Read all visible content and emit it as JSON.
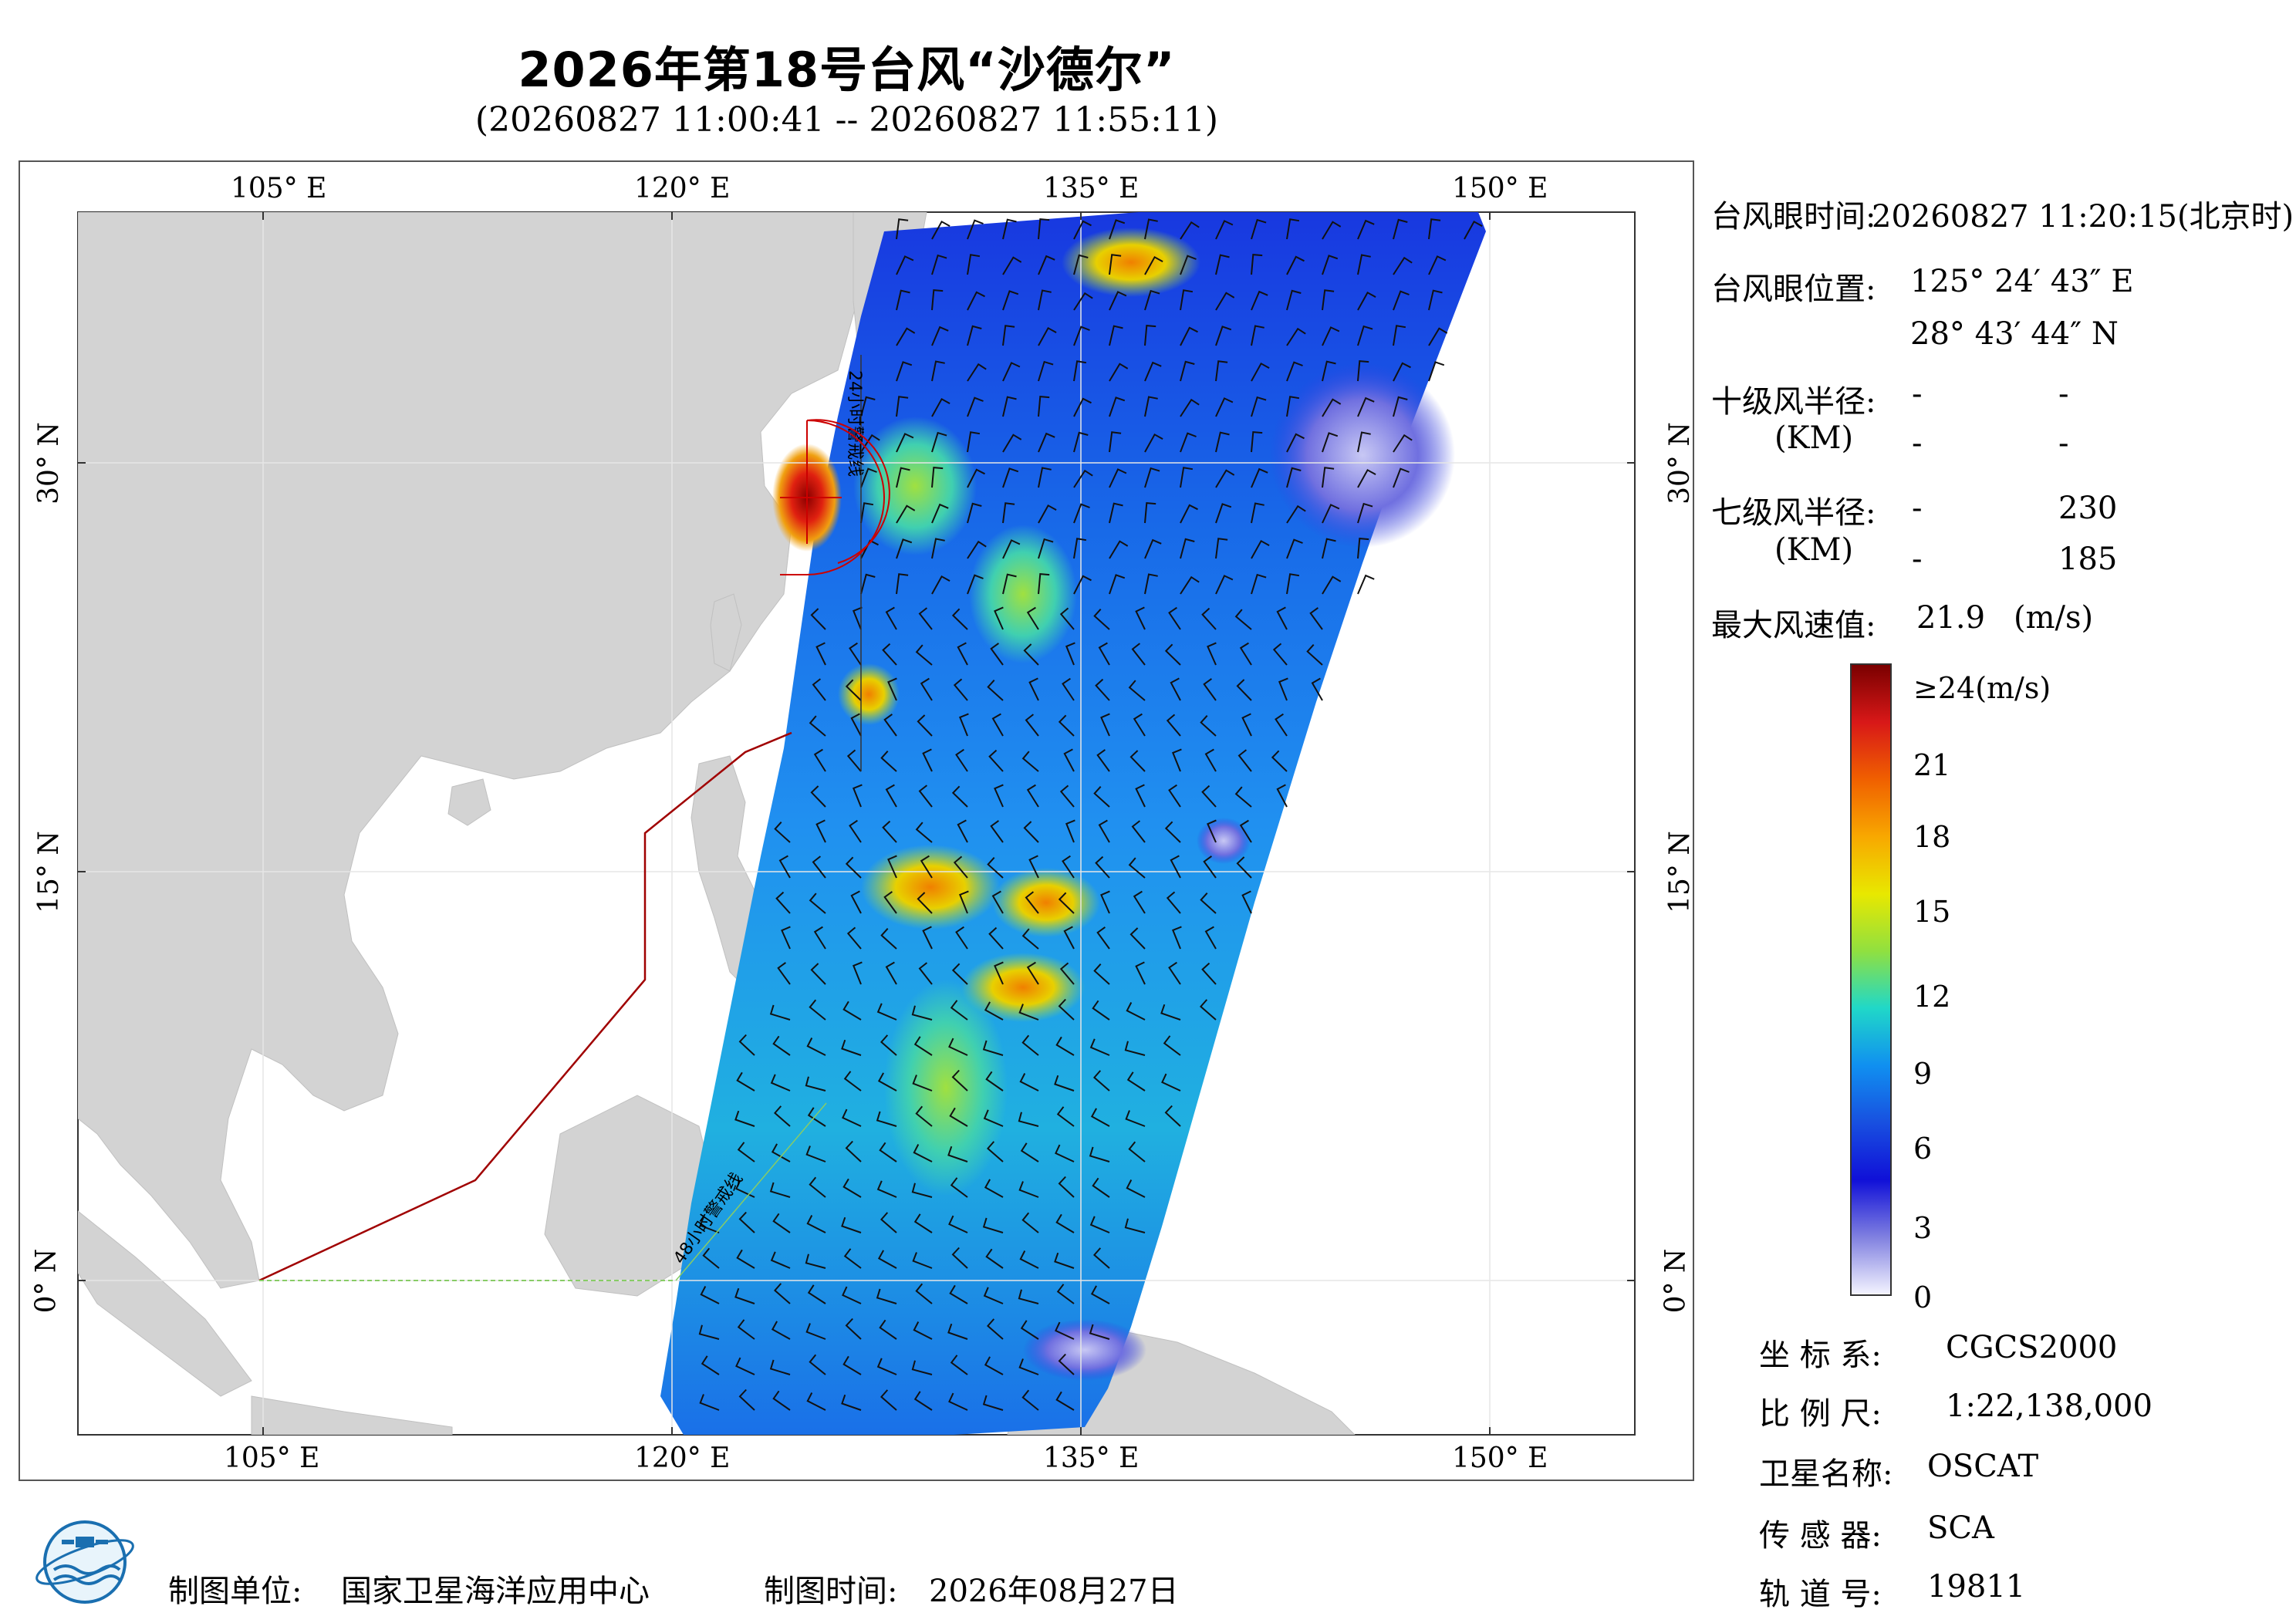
{
  "header": {
    "title": "2026年第18号台风“沙德尔”",
    "subtitle": "(20260827 11:00:41 -- 20260827 11:55:11)"
  },
  "map": {
    "lon_ticks": [
      "105° E",
      "120° E",
      "135° E",
      "150° E"
    ],
    "lat_ticks": [
      "30° N",
      "15° N",
      "0° N"
    ],
    "warning_line_24h": "24小时警戒线",
    "warning_line_48h": "48小时警戒线",
    "colors": {
      "land": "#d3d3d3",
      "ocean": "#ffffff",
      "boundary": "#a00000",
      "eye_marker": "#cc0000"
    }
  },
  "info_panel": {
    "eye_time_label": "台风眼时间:",
    "eye_time_value": "20260827 11:20:15(北京时)",
    "eye_pos_label": "台风眼位置:",
    "eye_lon": "125° 24′ 43″ E",
    "eye_lat": "28° 43′ 44″ N",
    "r10_label": "十级风半径:",
    "r10_unit": "(KM)",
    "r10_values": [
      "-",
      "-",
      "-",
      "-"
    ],
    "r7_label": "七级风半径:",
    "r7_unit": "(KM)",
    "r7_values": [
      "-",
      "230",
      "-",
      "185"
    ],
    "max_wind_label": "最大风速值:",
    "max_wind_value": "21.9",
    "max_wind_unit": "(m/s)"
  },
  "colorbar": {
    "labels": [
      "≥24(m/s)",
      "21",
      "18",
      "15",
      "12",
      "9",
      "6",
      "3",
      "0"
    ],
    "stops": [
      "#7a0000",
      "#d81818",
      "#f06000",
      "#f8a800",
      "#e8e800",
      "#90e040",
      "#20d8c8",
      "#1090f0",
      "#1850e0",
      "#1010d8",
      "#8080e0",
      "#f4f4ff"
    ]
  },
  "meta": {
    "crs_label": "坐 标 系:",
    "crs_value": "CGCS2000",
    "scale_label": "比 例 尺:",
    "scale_value": "1:22,138,000",
    "sat_label": "卫星名称:",
    "sat_value": "OSCAT",
    "sensor_label": "传 感 器:",
    "sensor_value": "SCA",
    "orbit_label": "轨 道 号:",
    "orbit_value": "19811"
  },
  "footer": {
    "org_label": "制图单位:",
    "org_value": "国家卫星海洋应用中心",
    "date_label": "制图时间:",
    "date_value": "2026年08月27日"
  }
}
